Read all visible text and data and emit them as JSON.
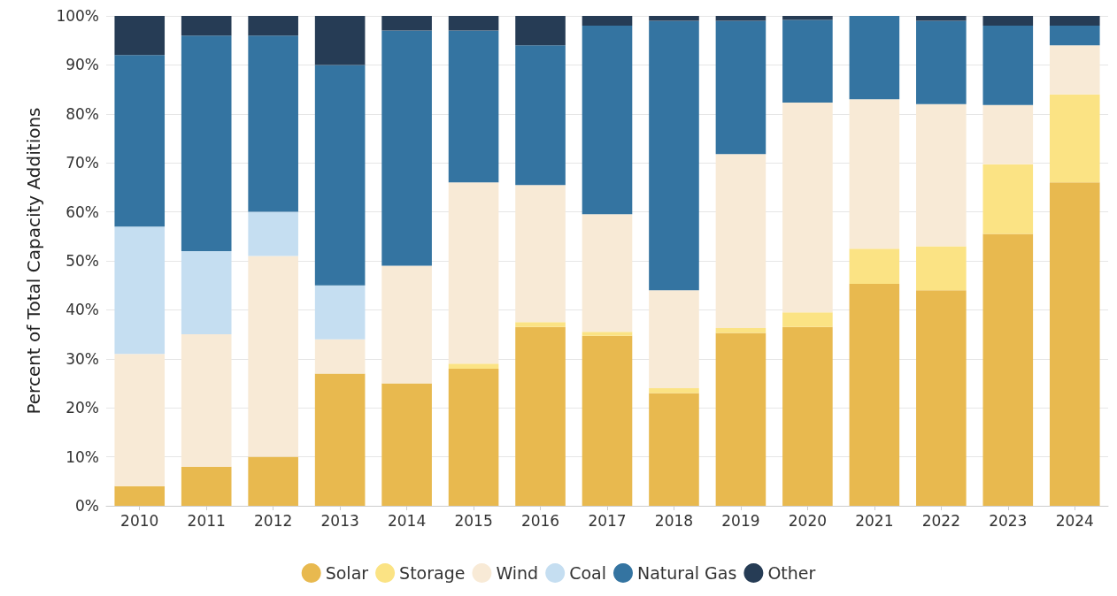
{
  "chart_data": {
    "type": "bar",
    "stacked": true,
    "ylabel": "Percent of Total Capacity Additions",
    "categories": [
      "2010",
      "2011",
      "2012",
      "2013",
      "2014",
      "2015",
      "2016",
      "2017",
      "2018",
      "2019",
      "2020",
      "2021",
      "2022",
      "2023",
      "2024"
    ],
    "series": [
      {
        "name": "Solar",
        "color": "#e8b94f",
        "values": [
          4,
          8,
          10,
          27,
          25,
          28,
          36.5,
          34.7,
          23,
          35.3,
          36.5,
          45.3,
          44,
          55.5,
          66
        ]
      },
      {
        "name": "Storage",
        "color": "#fbe384",
        "values": [
          0,
          0,
          0,
          0,
          0,
          1,
          1,
          0.8,
          1,
          1,
          3,
          7.2,
          9,
          14.2,
          18
        ]
      },
      {
        "name": "Wind",
        "color": "#f8ead6",
        "values": [
          27,
          27,
          41,
          7,
          24,
          37,
          28,
          24,
          20,
          35.5,
          42.8,
          30.5,
          29,
          12.1,
          10
        ]
      },
      {
        "name": "Coal",
        "color": "#c5def1",
        "values": [
          26,
          17,
          9,
          11,
          0,
          0,
          0,
          0,
          0,
          0,
          0,
          0,
          0,
          0,
          0
        ]
      },
      {
        "name": "Natural Gas",
        "color": "#3474a1",
        "values": [
          35,
          44,
          36,
          45,
          48,
          31,
          28.5,
          38.5,
          55,
          27.2,
          16.9,
          17,
          17,
          16.2,
          4
        ]
      },
      {
        "name": "Other",
        "color": "#263c55",
        "values": [
          8,
          4,
          4,
          10,
          3,
          3,
          6,
          2,
          1,
          1,
          0.8,
          0,
          1,
          2,
          2
        ]
      }
    ],
    "ylim": [
      0,
      100
    ],
    "yticks": [
      {
        "value": 0,
        "label": "0%"
      },
      {
        "value": 10,
        "label": "10%"
      },
      {
        "value": 20,
        "label": "20%"
      },
      {
        "value": 30,
        "label": "30%"
      },
      {
        "value": 40,
        "label": "40%"
      },
      {
        "value": 50,
        "label": "50%"
      },
      {
        "value": 60,
        "label": "60%"
      },
      {
        "value": 70,
        "label": "70%"
      },
      {
        "value": 80,
        "label": "80%"
      },
      {
        "value": 90,
        "label": "90%"
      },
      {
        "value": 100,
        "label": "100%"
      }
    ],
    "grid": "y",
    "legend": "bottom"
  }
}
